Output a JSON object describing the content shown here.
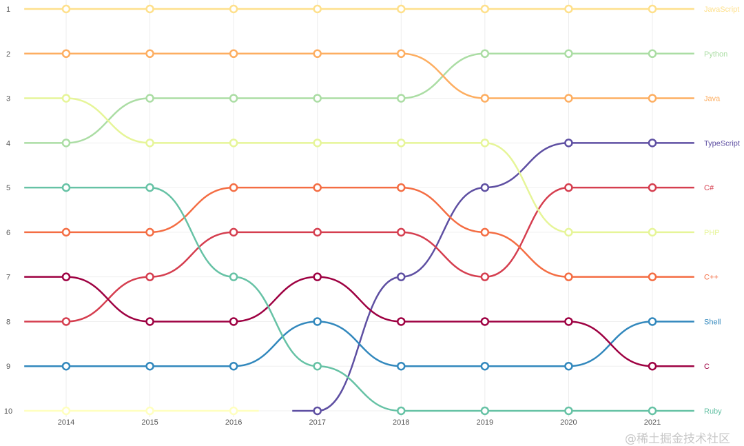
{
  "chart_data": {
    "type": "line",
    "subtype": "bump",
    "x": [
      2014,
      2015,
      2016,
      2017,
      2018,
      2019,
      2020,
      2021
    ],
    "y_ticks": [
      1,
      2,
      3,
      4,
      5,
      6,
      7,
      8,
      9,
      10
    ],
    "ylim": [
      1,
      10
    ],
    "y_inverted": true,
    "grid": true,
    "legend": "right-end labels",
    "series": [
      {
        "name": "JavaScript",
        "color": "#fee08b",
        "values": [
          1,
          1,
          1,
          1,
          1,
          1,
          1,
          1
        ]
      },
      {
        "name": "Python",
        "color": "#abdda4",
        "values": [
          4,
          3,
          3,
          3,
          3,
          2,
          2,
          2
        ]
      },
      {
        "name": "Java",
        "color": "#fdae61",
        "values": [
          2,
          2,
          2,
          2,
          2,
          3,
          3,
          3
        ]
      },
      {
        "name": "TypeScript",
        "color": "#5e4fa2",
        "values": [
          null,
          null,
          null,
          10,
          7,
          5,
          4,
          4
        ]
      },
      {
        "name": "C#",
        "color": "#d53e4f",
        "values": [
          8,
          7,
          6,
          6,
          6,
          7,
          5,
          5
        ]
      },
      {
        "name": "PHP",
        "color": "#e6f598",
        "values": [
          3,
          4,
          4,
          4,
          4,
          4,
          6,
          6
        ]
      },
      {
        "name": "C++",
        "color": "#f46d43",
        "values": [
          6,
          6,
          5,
          5,
          5,
          6,
          7,
          7
        ]
      },
      {
        "name": "Shell",
        "color": "#3288bd",
        "values": [
          9,
          9,
          9,
          8,
          9,
          9,
          9,
          8
        ]
      },
      {
        "name": "C",
        "color": "#9e0142",
        "values": [
          7,
          8,
          8,
          7,
          8,
          8,
          8,
          9
        ]
      },
      {
        "name": "Ruby",
        "color": "#66c2a5",
        "values": [
          5,
          5,
          7,
          9,
          10,
          10,
          10,
          10
        ]
      },
      {
        "name": "",
        "color": "#ffffbf",
        "values": [
          10,
          10,
          10,
          null,
          null,
          null,
          null,
          null
        ]
      }
    ]
  },
  "watermark": "@稀土掘金技术社区"
}
